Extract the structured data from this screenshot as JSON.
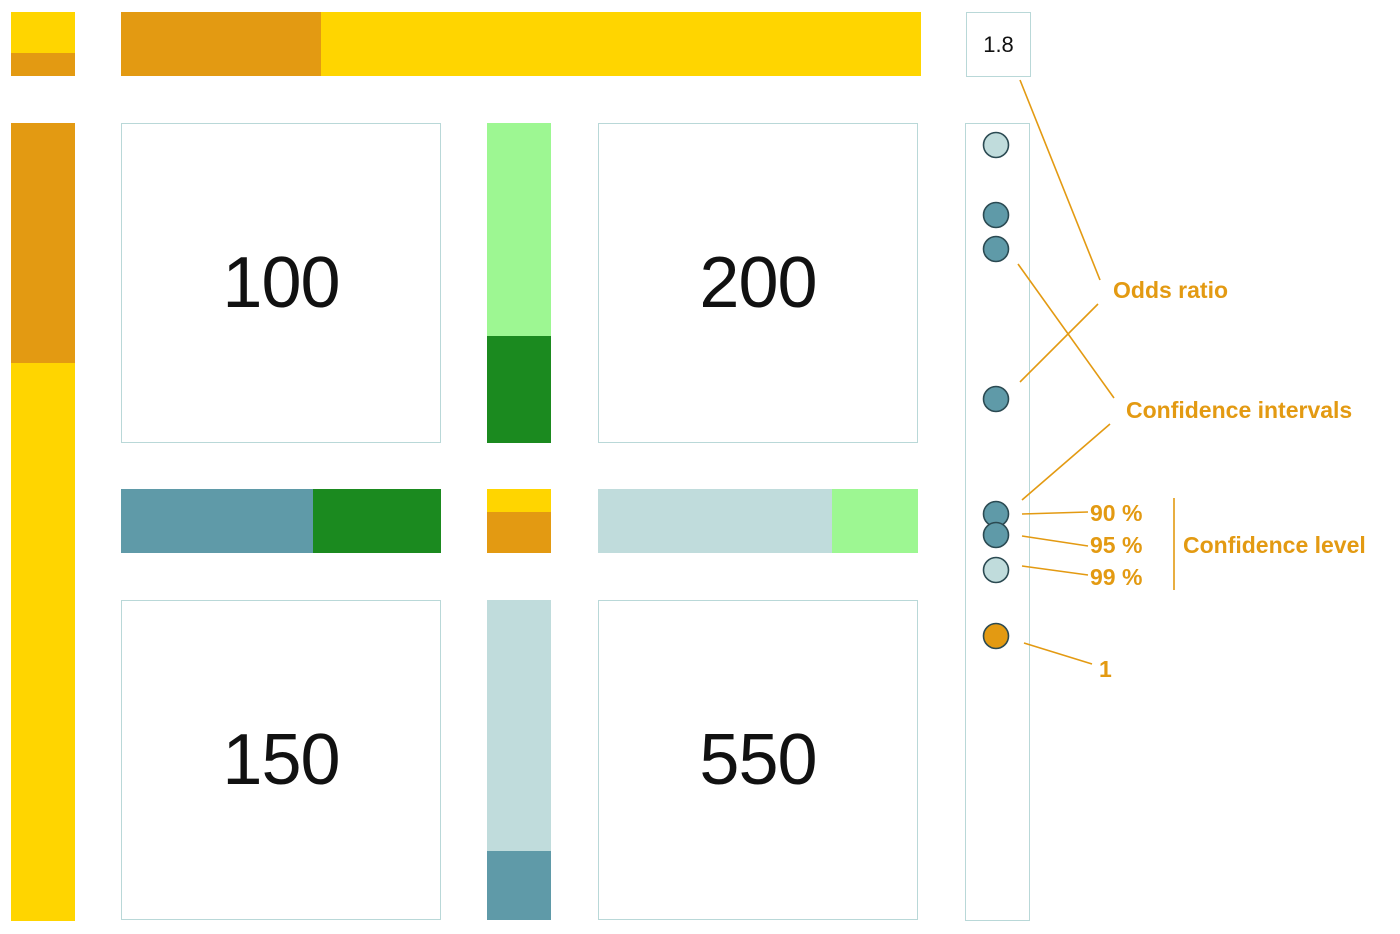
{
  "cells": {
    "top_left": "100",
    "top_right": "200",
    "bottom_left": "150",
    "bottom_right": "550"
  },
  "odds_ratio_value": "1.8",
  "annotations": {
    "odds_ratio": "Odds ratio",
    "confidence_intervals": "Confidence intervals",
    "confidence_level": "Confidence level",
    "level_90": "90 %",
    "level_95": "95 %",
    "level_99": "99 %",
    "reference_one": "1"
  },
  "proportions": {
    "top_bar_orange_fraction": 0.25,
    "left_bar_orange_fraction": 0.26,
    "col1_bar_dark_fraction": 0.33,
    "col2_bar_dark_fraction": 0.21,
    "row1_bar_green_fraction": 0.4,
    "row2_bar_green_fraction": 0.27
  },
  "colors": {
    "yellow": "#ffd500",
    "orange": "#e39a12",
    "light_green": "#9df792",
    "dark_green": "#1b8a1f",
    "teal": "#5f9aa8",
    "light_teal": "#c0dcdc",
    "frame": "#b9d8d8",
    "annotation": "#e39a12"
  }
}
